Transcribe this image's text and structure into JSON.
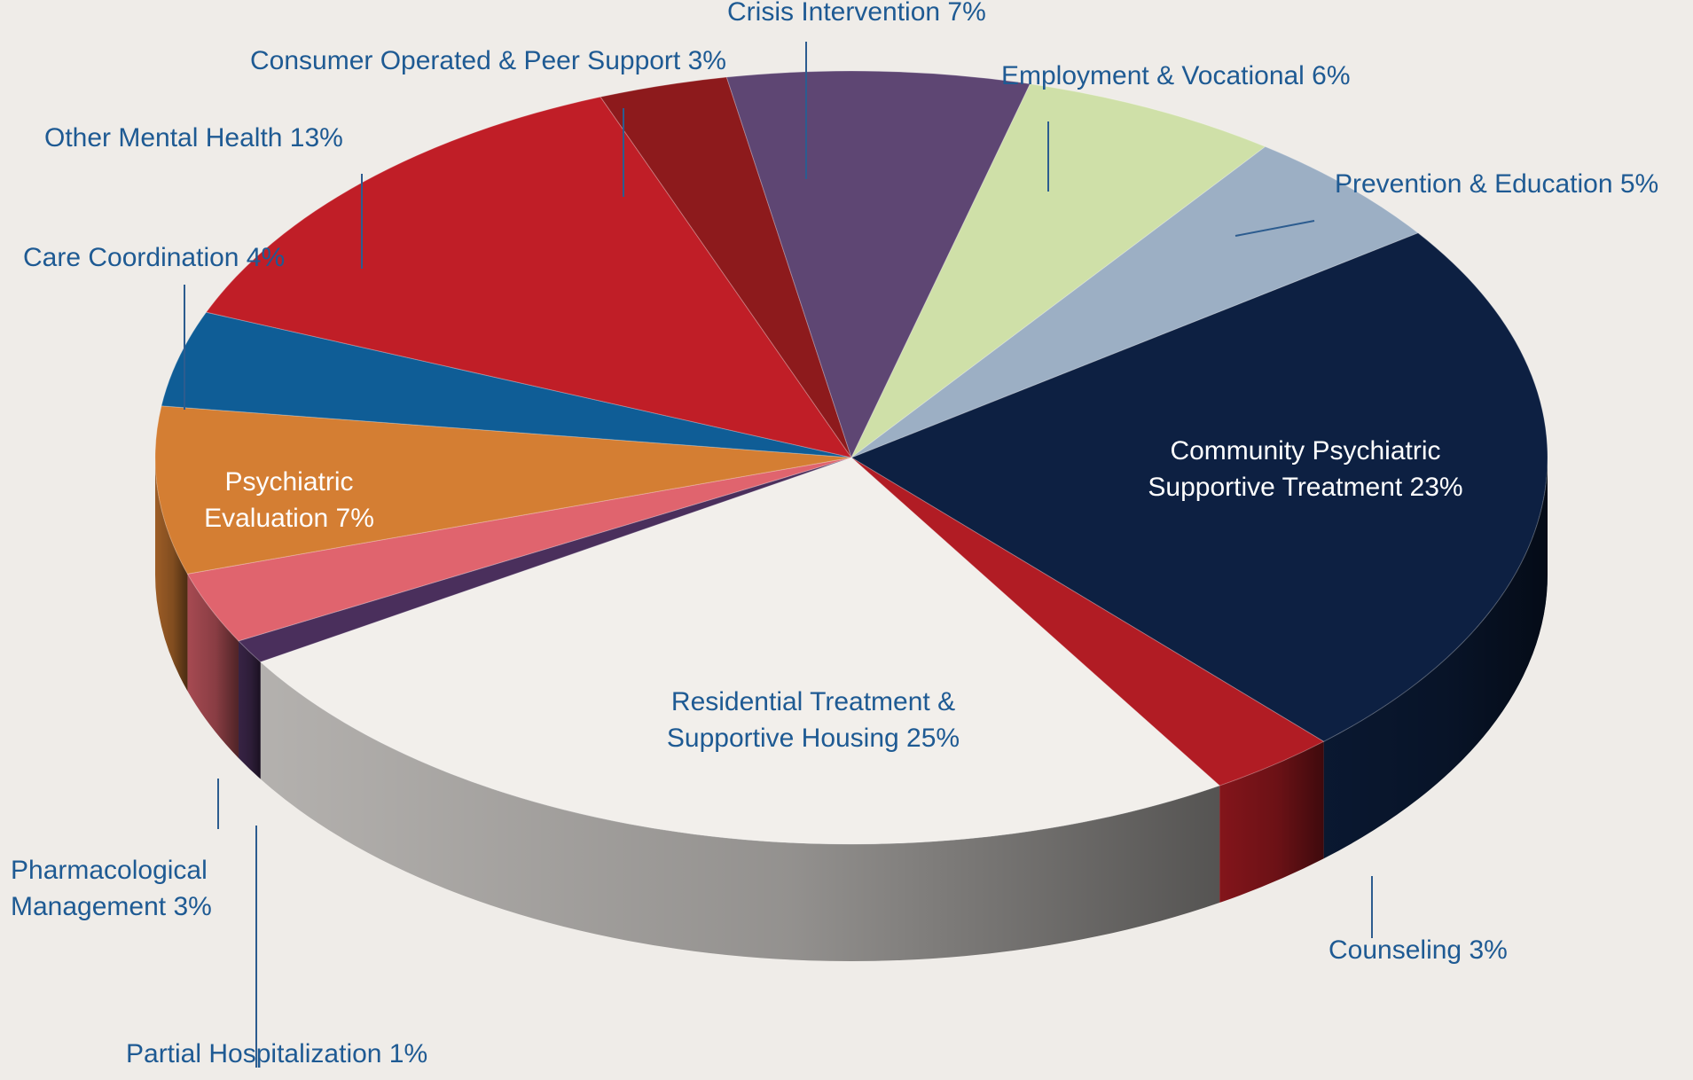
{
  "chart_data": {
    "type": "pie",
    "title": "",
    "slices": [
      {
        "label": "Community Psychiatric Supportive Treatment",
        "value": 23,
        "color": "#0d2042",
        "label_inside": true,
        "text_color": "#ffffff",
        "lines": [
          "Community Psychiatric",
          "Supportive Treatment 23%"
        ]
      },
      {
        "label": "Counseling",
        "value": 3,
        "color": "#b11c24",
        "label_inside": false,
        "text_color": "#1e5a93",
        "lines": [
          "Counseling 3%"
        ]
      },
      {
        "label": "Residential Treatment & Supportive Housing",
        "value": 25,
        "color": "#f2efeb",
        "label_inside": true,
        "text_color": "#1e5a93",
        "lines": [
          "Residential Treatment &",
          "Supportive Housing 25%"
        ]
      },
      {
        "label": "Partial Hospitalization",
        "value": 1,
        "color": "#4a2f5c",
        "label_inside": false,
        "text_color": "#1e5a93",
        "lines": [
          "Partial Hospitalization 1%"
        ]
      },
      {
        "label": "Pharmacological Management",
        "value": 3,
        "color": "#e0646e",
        "label_inside": false,
        "text_color": "#1e5a93",
        "lines": [
          "Pharmacological",
          "Management 3%"
        ]
      },
      {
        "label": "Psychiatric Evaluation",
        "value": 7,
        "color": "#d47e33",
        "label_inside": true,
        "text_color": "#ffffff",
        "lines": [
          "Psychiatric",
          "Evaluation  7%"
        ]
      },
      {
        "label": "Care Coordination",
        "value": 4,
        "color": "#0f5d96",
        "label_inside": false,
        "text_color": "#1e5a93",
        "lines": [
          "Care Coordination 4%"
        ]
      },
      {
        "label": "Other Mental Health",
        "value": 13,
        "color": "#c01e27",
        "label_inside": false,
        "text_color": "#1e5a93",
        "lines": [
          "Other Mental Health 13%"
        ]
      },
      {
        "label": "Consumer Operated & Peer Support",
        "value": 3,
        "color": "#8d1a1c",
        "label_inside": false,
        "text_color": "#1e5a93",
        "lines": [
          "Consumer Operated & Peer Support 3%"
        ]
      },
      {
        "label": "Crisis Intervention",
        "value": 7,
        "color": "#5e4673",
        "label_inside": false,
        "text_color": "#1e5a93",
        "lines": [
          "Crisis Intervention 7%"
        ]
      },
      {
        "label": "Employment & Vocational",
        "value": 6,
        "color": "#cfe0a8",
        "label_inside": false,
        "text_color": "#1e5a93",
        "lines": [
          "Employment & Vocational 6%"
        ]
      },
      {
        "label": "Prevention & Education",
        "value": 5,
        "color": "#9cafc4",
        "label_inside": false,
        "text_color": "#1e5a93",
        "lines": [
          "Prevention & Education 5%"
        ]
      }
    ],
    "style": {
      "background": "#efece8",
      "leader_color": "#2c5c8f"
    }
  }
}
